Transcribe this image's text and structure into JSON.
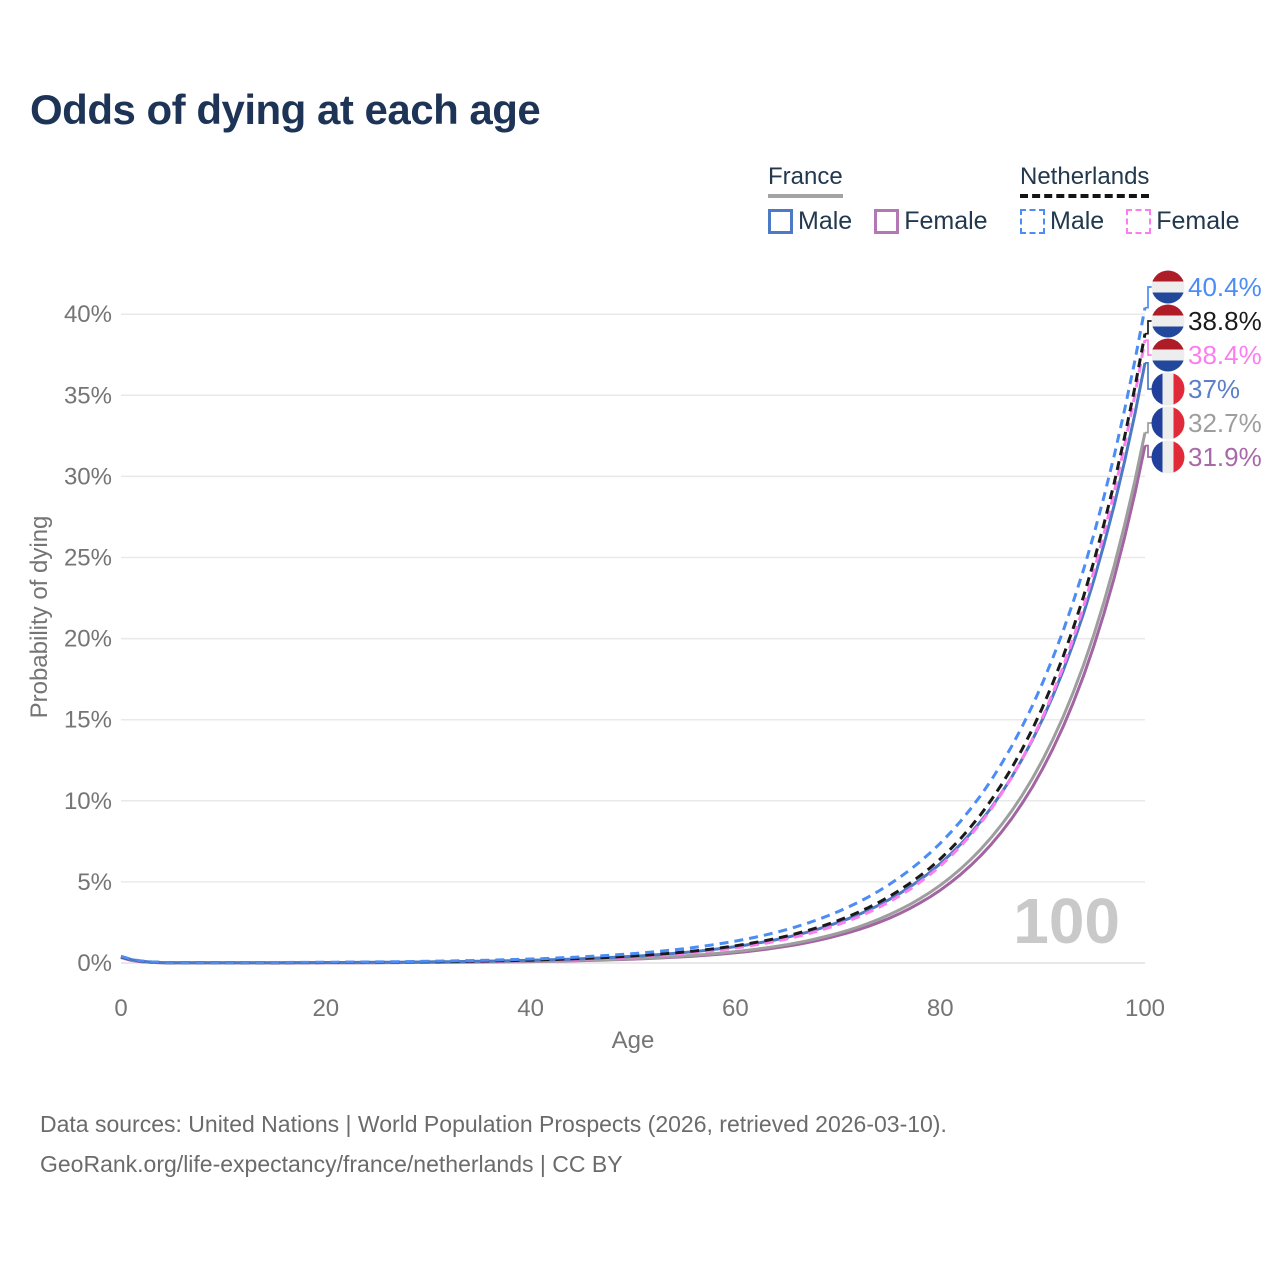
{
  "title": "Odds of dying at each age",
  "legend": {
    "groups": [
      {
        "id": "france",
        "label": "France",
        "line_style": "solid",
        "line_color": "#a3a3a3",
        "items": [
          {
            "id": "male",
            "label": "Male",
            "color": "#4d7ac4",
            "dashed": false
          },
          {
            "id": "female",
            "label": "Female",
            "color": "#b377b3",
            "dashed": false
          }
        ]
      },
      {
        "id": "netherlands",
        "label": "Netherlands",
        "line_style": "dashed",
        "line_color": "#141414",
        "items": [
          {
            "id": "male",
            "label": "Male",
            "color": "#4b8cf5",
            "dashed": true
          },
          {
            "id": "female",
            "label": "Female",
            "color": "#fb7df0",
            "dashed": true
          }
        ]
      }
    ]
  },
  "chart_data": {
    "type": "line",
    "title": "Odds of dying at each age",
    "xlabel": "Age",
    "ylabel": "Probability of dying",
    "unit": "%",
    "xlim": [
      0,
      100
    ],
    "ylim": [
      0,
      42
    ],
    "grid": "horizontal",
    "legend_position": "top-right",
    "age_counter": "100",
    "xticks": [
      0,
      20,
      40,
      60,
      80,
      100
    ],
    "yticks": [
      "0%",
      "5%",
      "10%",
      "15%",
      "20%",
      "25%",
      "30%",
      "35%",
      "40%"
    ],
    "ages": [
      0,
      5,
      10,
      15,
      20,
      25,
      30,
      35,
      40,
      45,
      50,
      55,
      60,
      65,
      70,
      75,
      80,
      85,
      90,
      95,
      100
    ],
    "series": [
      {
        "id": "netherlands-male",
        "name": "Netherlands Male",
        "country": "Netherlands",
        "sex": "Male",
        "color": "#4b8cf5",
        "label_color": "#4b8cf5",
        "dashed": true,
        "flag": "nl",
        "end_label": "40.4%",
        "values": [
          0.41,
          0.02,
          0.019,
          0.029,
          0.045,
          0.069,
          0.105,
          0.161,
          0.246,
          0.377,
          0.577,
          0.882,
          1.35,
          2.06,
          3.16,
          4.83,
          7.38,
          11.29,
          17.27,
          26.41,
          40.4
        ]
      },
      {
        "id": "netherlands-both",
        "name": "Netherlands Both sexes",
        "country": "Netherlands",
        "sex": "Both",
        "color": "#1a1a1a",
        "label_color": "#1a1a1a",
        "dashed": true,
        "flag": "nl",
        "end_label": "38.8%",
        "values": [
          0.385,
          0.015,
          0.012,
          0.018,
          0.029,
          0.045,
          0.071,
          0.112,
          0.175,
          0.275,
          0.431,
          0.676,
          1.06,
          1.66,
          2.61,
          4.09,
          6.41,
          10.06,
          15.77,
          24.74,
          38.8
        ]
      },
      {
        "id": "netherlands-female",
        "name": "Netherlands Female",
        "country": "Netherlands",
        "sex": "Female",
        "color": "#fb7df0",
        "label_color": "#fb7df0",
        "dashed": true,
        "flag": "nl",
        "end_label": "38.4%",
        "values": [
          0.354,
          0.012,
          0.009,
          0.014,
          0.023,
          0.036,
          0.057,
          0.091,
          0.145,
          0.23,
          0.367,
          0.584,
          0.929,
          1.48,
          2.36,
          3.76,
          5.98,
          9.52,
          15.15,
          24.12,
          38.4
        ]
      },
      {
        "id": "france-male",
        "name": "France Male",
        "country": "France",
        "sex": "Male",
        "color": "#4d7ac4",
        "label_color": "#5b80c8",
        "dashed": false,
        "flag": "fr",
        "end_label": "37%",
        "values": [
          0.405,
          0.014,
          0.011,
          0.018,
          0.028,
          0.043,
          0.068,
          0.107,
          0.167,
          0.262,
          0.411,
          0.645,
          1.01,
          1.58,
          2.49,
          3.9,
          6.12,
          9.59,
          15.04,
          23.59,
          37.0
        ]
      },
      {
        "id": "france-both",
        "name": "France Both sexes",
        "country": "France",
        "sex": "Both",
        "color": "#9e9e9e",
        "label_color": "#9e9e9e",
        "dashed": false,
        "flag": "fr",
        "end_label": "32.7%",
        "values": [
          0.372,
          0.01,
          0.006,
          0.009,
          0.015,
          0.024,
          0.039,
          0.064,
          0.103,
          0.166,
          0.269,
          0.435,
          0.703,
          1.13,
          1.83,
          2.97,
          4.79,
          7.75,
          12.52,
          20.23,
          32.7
        ]
      },
      {
        "id": "france-female",
        "name": "France Female",
        "country": "France",
        "sex": "Female",
        "color": "#a264a2",
        "label_color": "#a869a8",
        "dashed": false,
        "flag": "fr",
        "end_label": "31.9%",
        "values": [
          0.332,
          0.009,
          0.005,
          0.008,
          0.013,
          0.021,
          0.034,
          0.055,
          0.089,
          0.145,
          0.238,
          0.387,
          0.633,
          1.03,
          1.69,
          2.75,
          4.49,
          7.33,
          11.97,
          19.54,
          31.9
        ]
      }
    ],
    "flag_colors": {
      "nl": [
        "#ae1c28",
        "#ededed",
        "#21489b"
      ],
      "fr": [
        "#21409c",
        "#ededed",
        "#e12a39"
      ]
    }
  },
  "footer": {
    "line1": "Data sources: United Nations | World Population Prospects (2026, retrieved 2026-03-10).",
    "line2": "GeoRank.org/life-expectancy/france/netherlands | CC BY"
  }
}
